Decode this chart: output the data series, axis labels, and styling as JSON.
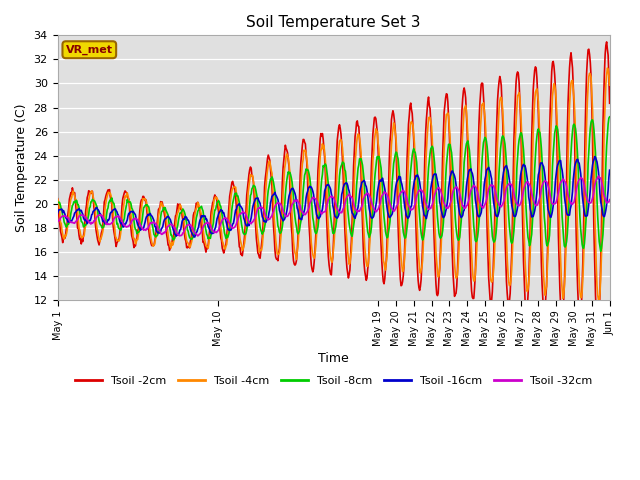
{
  "title": "Soil Temperature Set 3",
  "xlabel": "Time",
  "ylabel": "Soil Temperature (C)",
  "ylim": [
    12,
    34
  ],
  "yticks": [
    12,
    14,
    16,
    18,
    20,
    22,
    24,
    26,
    28,
    30,
    32,
    34
  ],
  "annotation": "VR_met",
  "series": {
    "Tsoil -2cm": {
      "color": "#dd0000",
      "lw": 1.2
    },
    "Tsoil -4cm": {
      "color": "#ff8800",
      "lw": 1.2
    },
    "Tsoil -8cm": {
      "color": "#00cc00",
      "lw": 1.2
    },
    "Tsoil -16cm": {
      "color": "#0000cc",
      "lw": 1.2
    },
    "Tsoil -32cm": {
      "color": "#cc00cc",
      "lw": 1.2
    }
  }
}
